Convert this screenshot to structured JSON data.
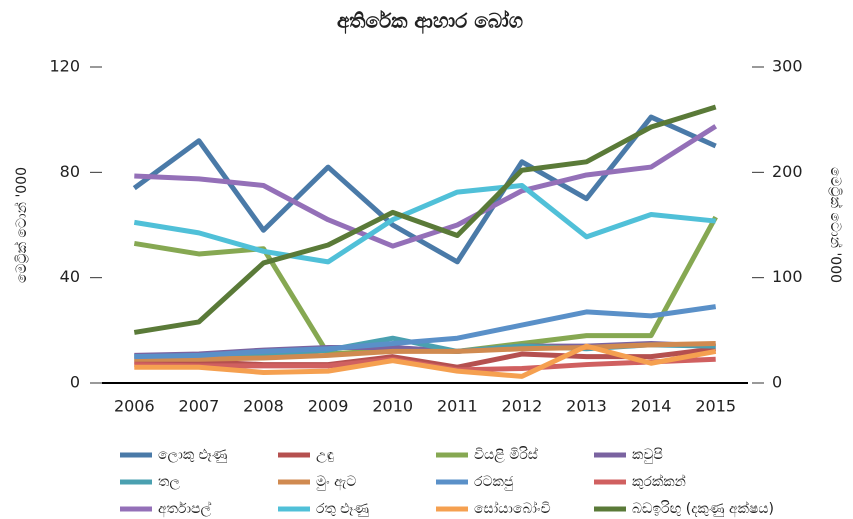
{
  "chart_data": {
    "type": "line",
    "title": "අතිරේක ආහාර බෝග",
    "ylabel": "මෙට්‍රික් ටොන් '000",
    "y2label": "මෙට්‍රික් ටොන් '000",
    "categories": [
      "2006",
      "2007",
      "2008",
      "2009",
      "2010",
      "2011",
      "2012",
      "2013",
      "2014",
      "2015"
    ],
    "ylim": [
      0,
      120
    ],
    "yticks": [
      0,
      40,
      80,
      120
    ],
    "y2lim": [
      0,
      300
    ],
    "y2ticks": [
      0,
      100,
      200,
      300
    ],
    "series": [
      {
        "name": "ලොකු ළූණු",
        "color": "#4a7aa8",
        "values": [
          74,
          92,
          58,
          82,
          60,
          46,
          84,
          70,
          101,
          90
        ]
      },
      {
        "name": "උඳු",
        "color": "#b5504f",
        "values": [
          8,
          8,
          7,
          7,
          10,
          6,
          11,
          10,
          10,
          13
        ]
      },
      {
        "name": "වියළි මිරිස්",
        "color": "#86a852",
        "values": [
          53,
          49,
          51,
          11,
          12.5,
          12,
          15,
          18,
          18,
          63
        ]
      },
      {
        "name": "කවුපි",
        "color": "#7a63a0",
        "values": [
          10.5,
          11,
          12.5,
          13.5,
          13.5,
          12,
          14,
          14,
          15,
          14
        ]
      },
      {
        "name": "තල",
        "color": "#4aa0b0",
        "values": [
          10,
          10,
          10.5,
          12.5,
          17,
          12,
          14,
          13,
          14.5,
          14
        ]
      },
      {
        "name": "මුං ඇට",
        "color": "#d08a50",
        "values": [
          9,
          9,
          9.5,
          10.5,
          12,
          12,
          13,
          13.5,
          14.5,
          15
        ]
      },
      {
        "name": "රටකජු",
        "color": "#5a90c8",
        "values": [
          10,
          10.5,
          12,
          13,
          15,
          17,
          22,
          27,
          25.5,
          29
        ]
      },
      {
        "name": "කුරක්කන්",
        "color": "#d06060",
        "values": [
          7,
          6.5,
          6.5,
          6.5,
          9,
          5,
          5.5,
          7,
          8,
          9
        ]
      },
      {
        "name": "අර්තාපල්",
        "color": "#9470b8",
        "values": [
          78.6,
          77.5,
          75,
          62,
          52,
          60,
          73,
          79,
          82,
          97.5
        ]
      },
      {
        "name": "රතු ළූණු",
        "color": "#50c0d8",
        "values": [
          61,
          57,
          50,
          46,
          62,
          72.5,
          75,
          55.5,
          64,
          61.5
        ]
      },
      {
        "name": "සෝයාබෝංචි",
        "color": "#f5a050",
        "values": [
          6,
          6,
          4,
          4.5,
          8.5,
          4.5,
          2.5,
          14,
          7.5,
          12
        ]
      },
      {
        "name": "බඩඉරිඟු (දකුණු අක්ෂය)",
        "color": "#5a7a38",
        "axis": "y2",
        "values": [
          48,
          58,
          114,
          131,
          162,
          140,
          202,
          210,
          243,
          262
        ]
      }
    ]
  }
}
